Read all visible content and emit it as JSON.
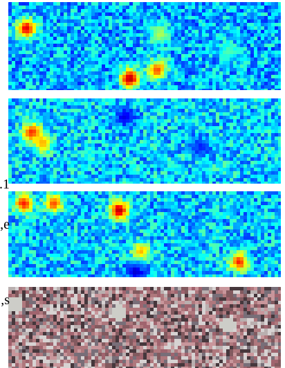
{
  "panels": [
    {
      "name": "heatmap-panel-1",
      "palette": "jet",
      "base": 0.3,
      "hotspots": [
        [
          0.06,
          0.28,
          0.9
        ],
        [
          0.44,
          0.85,
          0.95
        ],
        [
          0.54,
          0.75,
          0.8
        ],
        [
          0.55,
          0.35,
          0.55
        ],
        [
          0.8,
          0.55,
          0.45
        ]
      ]
    },
    {
      "name": "heatmap-panel-2",
      "palette": "jet",
      "base": 0.33,
      "hotspots": [
        [
          0.08,
          0.38,
          0.85
        ],
        [
          0.12,
          0.5,
          0.7
        ],
        [
          0.42,
          0.2,
          0.1
        ],
        [
          0.7,
          0.55,
          0.15
        ]
      ]
    },
    {
      "name": "heatmap-panel-3",
      "palette": "jet",
      "base": 0.32,
      "hotspots": [
        [
          0.05,
          0.12,
          0.85
        ],
        [
          0.16,
          0.12,
          0.8
        ],
        [
          0.4,
          0.2,
          0.95
        ],
        [
          0.48,
          0.68,
          0.7
        ],
        [
          0.84,
          0.8,
          0.85
        ],
        [
          0.46,
          0.92,
          0.08
        ]
      ]
    },
    {
      "name": "photo-panel-4",
      "palette": "texture",
      "base": 0.5,
      "hotspots": [
        [
          0.4,
          0.3,
          0.9
        ],
        [
          0.02,
          0.2,
          0.6
        ],
        [
          0.8,
          0.45,
          0.6
        ]
      ]
    }
  ],
  "side_text": [
    {
      "name": "side-text-1",
      "text": "1."
    },
    {
      "name": "side-text-2",
      "text": "e,"
    },
    {
      "name": "side-text-3",
      "text": "s,"
    }
  ]
}
